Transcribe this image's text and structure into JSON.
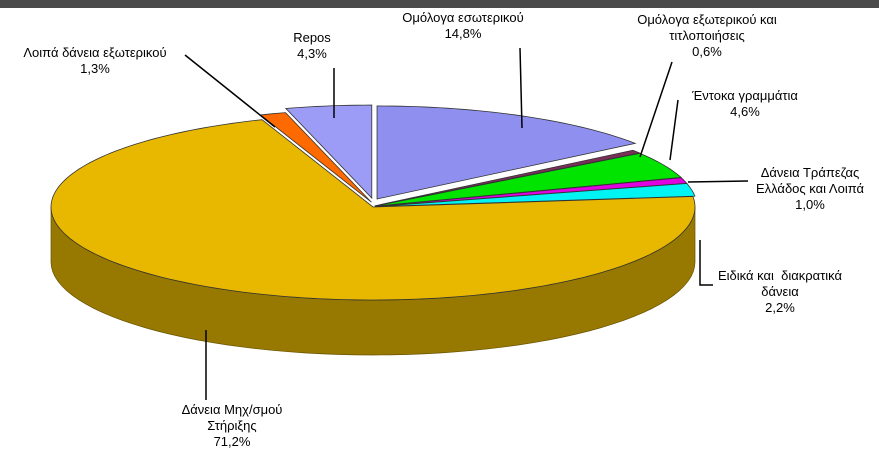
{
  "chart_data": {
    "type": "pie",
    "categories": [
      "Ομόλογα εσωτερικού",
      "Ομόλογα εξωτερικού και τιτλοποιήσεις",
      "Έντοκα γραμμάτια",
      "Δάνεια Τράπεζας Ελλάδος και Λοιπά",
      "Ειδικά και  διακρατικά δάνεια",
      "Δάνεια Μηχ/σμού Στήριξης",
      "Λοιπά δάνεια εξωτερικού",
      "Repos"
    ],
    "values": [
      14.8,
      0.6,
      4.6,
      1.0,
      2.2,
      71.2,
      1.3,
      4.3
    ],
    "value_labels": [
      "14,8%",
      "0,6%",
      "4,6%",
      "1,0%",
      "2,2%",
      "71,2%",
      "1,3%",
      "4,3%"
    ],
    "colors": [
      "#8f8ff0",
      "#7a2e5a",
      "#00e400",
      "#e000e0",
      "#00f4f4",
      "#e8b800",
      "#ff6a00",
      "#9c9cf6"
    ]
  }
}
